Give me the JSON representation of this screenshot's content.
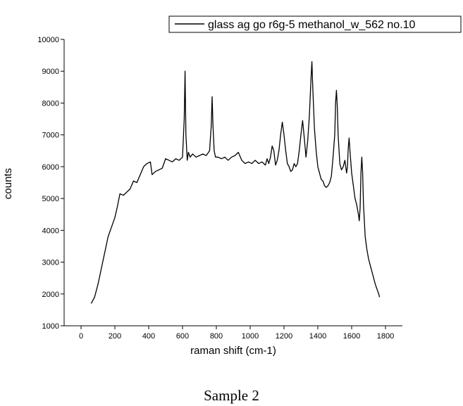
{
  "chart_data": {
    "type": "line",
    "xlabel": "raman shift (cm-1)",
    "ylabel": "counts",
    "xlim": [
      -100,
      1900
    ],
    "ylim": [
      1000,
      10000
    ],
    "xticks": [
      0,
      200,
      400,
      600,
      800,
      1000,
      1200,
      1400,
      1600,
      1800
    ],
    "yticks": [
      1000,
      2000,
      3000,
      4000,
      5000,
      6000,
      7000,
      8000,
      9000,
      10000
    ],
    "grid": false,
    "legend_position": "top-right",
    "line_color": "#000000",
    "series": [
      {
        "name": "glass ag go r6g-5 methanol_w_562 no.10",
        "x": [
          60,
          80,
          100,
          120,
          140,
          160,
          180,
          200,
          215,
          230,
          250,
          270,
          290,
          310,
          330,
          350,
          370,
          390,
          410,
          420,
          440,
          460,
          480,
          500,
          520,
          540,
          560,
          580,
          600,
          610,
          615,
          620,
          628,
          635,
          645,
          660,
          680,
          700,
          720,
          740,
          760,
          770,
          775,
          780,
          787,
          795,
          810,
          830,
          850,
          870,
          890,
          910,
          930,
          950,
          970,
          990,
          1010,
          1030,
          1050,
          1070,
          1090,
          1100,
          1110,
          1120,
          1130,
          1140,
          1150,
          1160,
          1170,
          1180,
          1190,
          1200,
          1210,
          1220,
          1230,
          1240,
          1250,
          1260,
          1270,
          1280,
          1290,
          1300,
          1310,
          1320,
          1330,
          1340,
          1350,
          1360,
          1365,
          1370,
          1380,
          1390,
          1400,
          1410,
          1420,
          1430,
          1440,
          1450,
          1460,
          1470,
          1480,
          1490,
          1500,
          1505,
          1510,
          1515,
          1520,
          1530,
          1540,
          1550,
          1560,
          1570,
          1575,
          1580,
          1585,
          1590,
          1600,
          1610,
          1620,
          1630,
          1640,
          1645,
          1650,
          1655,
          1660,
          1665,
          1670,
          1680,
          1690,
          1700,
          1710,
          1720,
          1730,
          1740,
          1750,
          1760,
          1765
        ],
        "values": [
          1700,
          1900,
          2300,
          2800,
          3300,
          3800,
          4100,
          4400,
          4750,
          5150,
          5100,
          5200,
          5300,
          5550,
          5500,
          5750,
          6000,
          6100,
          6150,
          5750,
          5850,
          5900,
          5950,
          6250,
          6200,
          6150,
          6250,
          6200,
          6300,
          7500,
          9000,
          7000,
          6200,
          6450,
          6300,
          6400,
          6300,
          6350,
          6400,
          6350,
          6500,
          7300,
          8200,
          7300,
          6500,
          6300,
          6300,
          6250,
          6300,
          6200,
          6300,
          6350,
          6450,
          6200,
          6100,
          6150,
          6100,
          6200,
          6100,
          6150,
          6050,
          6250,
          6100,
          6300,
          6650,
          6500,
          6050,
          6200,
          6500,
          7000,
          7400,
          7000,
          6500,
          6100,
          6000,
          5850,
          5900,
          6100,
          6000,
          6100,
          6500,
          7000,
          7450,
          6900,
          6300,
          6800,
          7600,
          8800,
          9300,
          8500,
          7200,
          6500,
          6000,
          5800,
          5600,
          5550,
          5400,
          5350,
          5400,
          5500,
          5700,
          6300,
          7000,
          8000,
          8400,
          7900,
          7000,
          6100,
          5900,
          6000,
          6200,
          5800,
          6000,
          6600,
          6900,
          6500,
          5800,
          5400,
          5000,
          4800,
          4500,
          4300,
          4700,
          5800,
          6300,
          5800,
          4800,
          3800,
          3400,
          3100,
          2900,
          2700,
          2500,
          2300,
          2150,
          2000,
          1900
        ]
      }
    ]
  },
  "caption": "Sample 2"
}
